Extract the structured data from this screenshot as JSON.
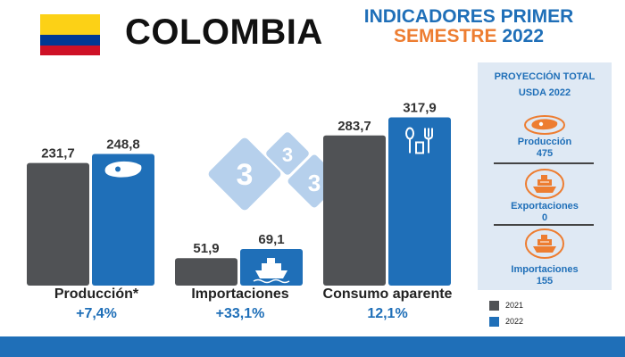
{
  "header": {
    "country": "COLOMBIA",
    "title_line1": "INDICADORES PRIMER",
    "title_line2_a": "SEMESTRE",
    "title_line2_b": "2022"
  },
  "colors": {
    "y2021": "#505255",
    "y2022": "#1f6fb8",
    "accent": "#ed7d31",
    "panel": "#dfe9f4"
  },
  "chart_data": {
    "type": "bar",
    "categories": [
      "Producción*",
      "Importaciones",
      "Consumo aparente"
    ],
    "series": [
      {
        "name": "2021",
        "values": [
          231.7,
          51.9,
          283.7
        ],
        "labels": [
          "231,7",
          "51,9",
          "283,7"
        ]
      },
      {
        "name": "2022",
        "values": [
          248.8,
          69.1,
          317.9
        ],
        "labels": [
          "248,8",
          "69,1",
          "317,9"
        ]
      }
    ],
    "changes": [
      "+7,4%",
      "+33,1%",
      "12,1%"
    ],
    "legend_position": "bottom-right"
  },
  "panel": {
    "title_line1": "PROYECCIÓN TOTAL",
    "title_line2": "USDA 2022",
    "items": [
      {
        "label": "Producción",
        "value": "475",
        "icon": "steak-icon"
      },
      {
        "label": "Exportaciones",
        "value": "0",
        "icon": "ship-icon"
      },
      {
        "label": "Importaciones",
        "value": "155",
        "icon": "ship-icon"
      }
    ]
  },
  "watermark": "3"
}
